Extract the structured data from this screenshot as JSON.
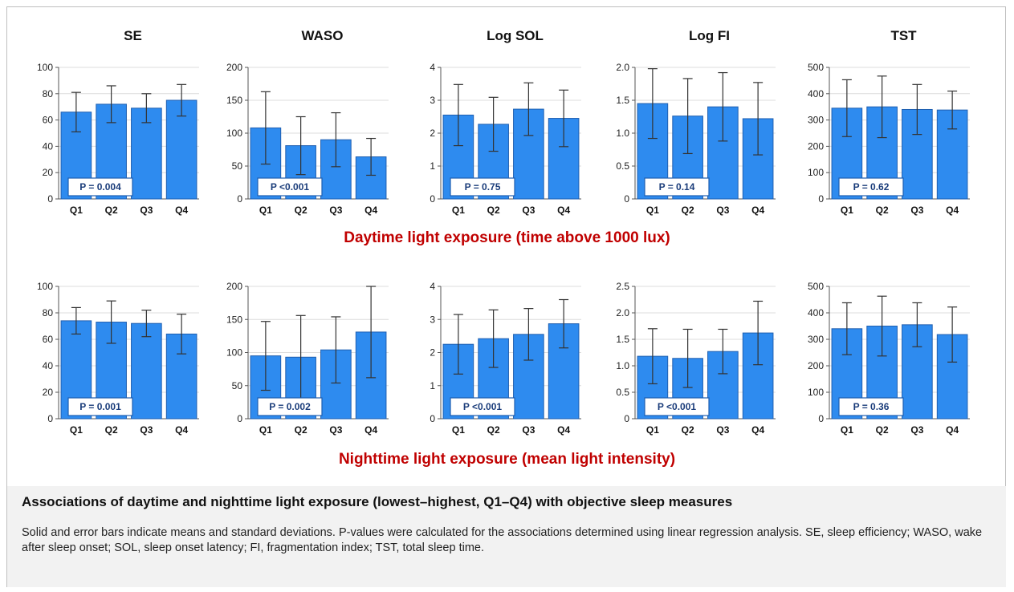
{
  "row_captions": [
    "Daytime light exposure (time above 1000 lux)",
    "Nighttime light exposure (mean light intensity)"
  ],
  "caption": {
    "title": "Associations of daytime and nighttime light exposure (lowest–highest, Q1–Q4) with  objective sleep measures",
    "body": "Solid and error bars indicate means and standard deviations. P-values were calculated for the associations determined using linear regression analysis. SE, sleep efficiency; WASO, wake after sleep onset; SOL, sleep onset latency; FI, fragmentation index; TST, total sleep time."
  },
  "colors": {
    "bar": "#2e8bef",
    "bar_edge": "#1f5fb0",
    "error": "#333333",
    "pbox_border": "#1f5fb0",
    "pbox_text": "#1a3c7a",
    "row_caption": "#c00000"
  },
  "chart_data": [
    {
      "type": "bar",
      "row": "daytime",
      "title": "SE",
      "categories": [
        "Q1",
        "Q2",
        "Q3",
        "Q4"
      ],
      "values": [
        66,
        72,
        69,
        75
      ],
      "errors": [
        15,
        14,
        11,
        12
      ],
      "ylim": [
        0,
        100
      ],
      "yticks": [
        0,
        20,
        40,
        60,
        80,
        100
      ],
      "tick_labels": [
        "0",
        "20",
        "40",
        "60",
        "80",
        "100"
      ],
      "p_value": "P = 0.004"
    },
    {
      "type": "bar",
      "row": "daytime",
      "title": "WASO",
      "categories": [
        "Q1",
        "Q2",
        "Q3",
        "Q4"
      ],
      "values": [
        108,
        81,
        90,
        64
      ],
      "errors": [
        55,
        44,
        41,
        28
      ],
      "ylim": [
        0,
        200
      ],
      "yticks": [
        0,
        50,
        100,
        150,
        200
      ],
      "tick_labels": [
        "0",
        "50",
        "100",
        "150",
        "200"
      ],
      "p_value": "P <0.001"
    },
    {
      "type": "bar",
      "row": "daytime",
      "title": "Log SOL",
      "categories": [
        "Q1",
        "Q2",
        "Q3",
        "Q4"
      ],
      "values": [
        2.55,
        2.27,
        2.73,
        2.45
      ],
      "errors": [
        0.93,
        0.82,
        0.8,
        0.86
      ],
      "ylim": [
        0,
        4
      ],
      "yticks": [
        0,
        1,
        2,
        3,
        4
      ],
      "tick_labels": [
        "0",
        "1",
        "2",
        "3",
        "4"
      ],
      "p_value": "P = 0.75"
    },
    {
      "type": "bar",
      "row": "daytime",
      "title": "Log FI",
      "categories": [
        "Q1",
        "Q2",
        "Q3",
        "Q4"
      ],
      "values": [
        1.45,
        1.26,
        1.4,
        1.22
      ],
      "errors": [
        0.53,
        0.57,
        0.52,
        0.55
      ],
      "ylim": [
        0,
        2.0
      ],
      "yticks": [
        0,
        0.5,
        1.0,
        1.5,
        2.0
      ],
      "tick_labels": [
        "0",
        "0.5",
        "1.0",
        "1.5",
        "2.0"
      ],
      "p_value": "P = 0.14"
    },
    {
      "type": "bar",
      "row": "daytime",
      "title": "TST",
      "categories": [
        "Q1",
        "Q2",
        "Q3",
        "Q4"
      ],
      "values": [
        345,
        350,
        340,
        338
      ],
      "errors": [
        108,
        117,
        95,
        72
      ],
      "ylim": [
        0,
        500
      ],
      "yticks": [
        0,
        100,
        200,
        300,
        400,
        500
      ],
      "tick_labels": [
        "0",
        "100",
        "200",
        "300",
        "400",
        "500"
      ],
      "p_value": "P = 0.62"
    },
    {
      "type": "bar",
      "row": "nighttime",
      "title": "",
      "categories": [
        "Q1",
        "Q2",
        "Q3",
        "Q4"
      ],
      "values": [
        74,
        73,
        72,
        64
      ],
      "errors": [
        10,
        16,
        10,
        15
      ],
      "ylim": [
        0,
        100
      ],
      "yticks": [
        0,
        20,
        40,
        60,
        80,
        100
      ],
      "tick_labels": [
        "0",
        "20",
        "40",
        "60",
        "80",
        "100"
      ],
      "p_value": "P = 0.001"
    },
    {
      "type": "bar",
      "row": "nighttime",
      "title": "",
      "categories": [
        "Q1",
        "Q2",
        "Q3",
        "Q4"
      ],
      "values": [
        95,
        93,
        104,
        131
      ],
      "errors": [
        52,
        63,
        50,
        69
      ],
      "ylim": [
        0,
        200
      ],
      "yticks": [
        0,
        50,
        100,
        150,
        200
      ],
      "tick_labels": [
        "0",
        "50",
        "100",
        "150",
        "200"
      ],
      "p_value": "P = 0.002"
    },
    {
      "type": "bar",
      "row": "nighttime",
      "title": "",
      "categories": [
        "Q1",
        "Q2",
        "Q3",
        "Q4"
      ],
      "values": [
        2.25,
        2.42,
        2.55,
        2.87
      ],
      "errors": [
        0.9,
        0.87,
        0.78,
        0.73
      ],
      "ylim": [
        0,
        4
      ],
      "yticks": [
        0,
        1,
        2,
        3,
        4
      ],
      "tick_labels": [
        "0",
        "1",
        "2",
        "3",
        "4"
      ],
      "p_value": "P <0.001"
    },
    {
      "type": "bar",
      "row": "nighttime",
      "title": "",
      "categories": [
        "Q1",
        "Q2",
        "Q3",
        "Q4"
      ],
      "values": [
        1.18,
        1.14,
        1.27,
        1.62
      ],
      "errors": [
        0.52,
        0.55,
        0.42,
        0.6
      ],
      "ylim": [
        0,
        2.5
      ],
      "yticks": [
        0,
        0.5,
        1.0,
        1.5,
        2.0,
        2.5
      ],
      "tick_labels": [
        "0",
        "0.5",
        "1.0",
        "1.5",
        "2.0",
        "2.5"
      ],
      "p_value": "P <0.001"
    },
    {
      "type": "bar",
      "row": "nighttime",
      "title": "",
      "categories": [
        "Q1",
        "Q2",
        "Q3",
        "Q4"
      ],
      "values": [
        340,
        350,
        355,
        318
      ],
      "errors": [
        98,
        113,
        83,
        104
      ],
      "ylim": [
        0,
        500
      ],
      "yticks": [
        0,
        100,
        200,
        300,
        400,
        500
      ],
      "tick_labels": [
        "0",
        "100",
        "200",
        "300",
        "400",
        "500"
      ],
      "p_value": "P = 0.36"
    }
  ]
}
